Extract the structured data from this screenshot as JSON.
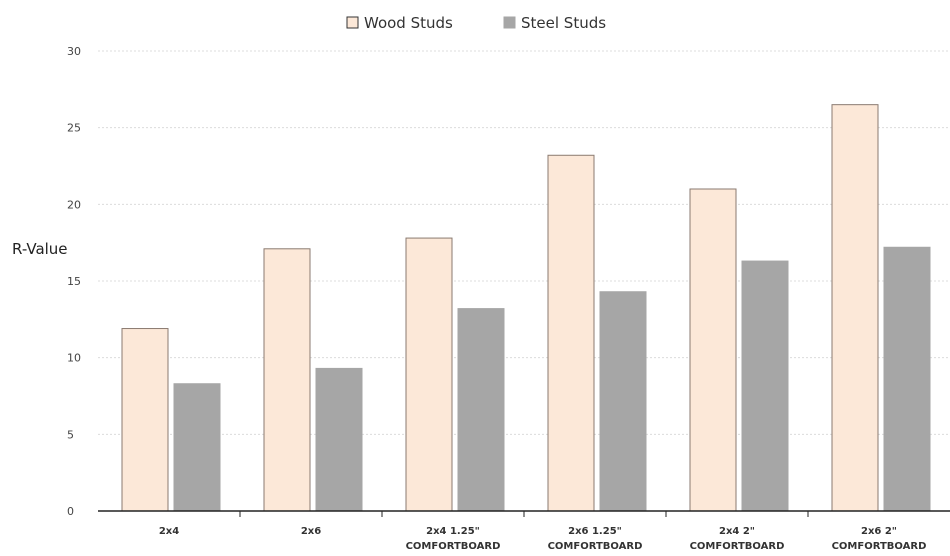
{
  "chart_data": {
    "type": "bar",
    "ylabel": "R-Value",
    "ylim": [
      0,
      30
    ],
    "yticks": [
      "0",
      "5",
      "10",
      "15",
      "20",
      "25",
      "30"
    ],
    "grid": true,
    "legend_position": "top-center",
    "categories": [
      [
        "2x4"
      ],
      [
        "2x6"
      ],
      [
        "2x4  1.25\"",
        "COMFORTBOARD"
      ],
      [
        "2x6  1.25\"",
        "COMFORTBOARD"
      ],
      [
        "2x4  2\"",
        "COMFORTBOARD"
      ],
      [
        "2x6  2\"",
        "COMFORTBOARD"
      ]
    ],
    "series": [
      {
        "name": "Wood Studs",
        "color": "#fce8d8",
        "stroke": "#8a7a70",
        "values": [
          11.9,
          17.1,
          17.8,
          23.2,
          21.0,
          26.5
        ]
      },
      {
        "name": "Steel Studs",
        "color": "#a6a6a6",
        "stroke": "#a6a6a6",
        "values": [
          8.3,
          9.3,
          13.2,
          14.3,
          16.3,
          17.2
        ]
      }
    ]
  }
}
